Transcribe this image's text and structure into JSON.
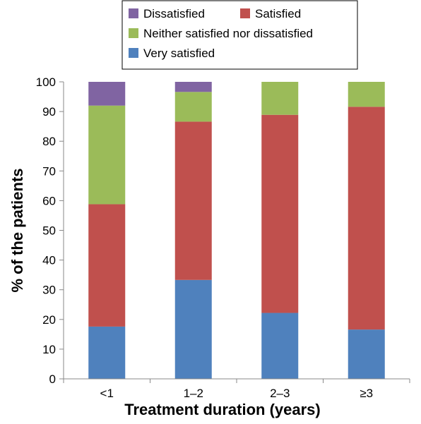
{
  "chart_data": {
    "type": "bar",
    "stacked": true,
    "categories": [
      "<1",
      "1–2",
      "2–3",
      "≥3"
    ],
    "series": [
      {
        "name": "Very satisfied",
        "color": "#4f81bd",
        "values": [
          17.6,
          33.3,
          22.2,
          16.6
        ]
      },
      {
        "name": "Satisfied",
        "color": "#c0504d",
        "values": [
          41.2,
          53.3,
          66.7,
          75.0
        ]
      },
      {
        "name": "Neither satisfied nor dissatisfied",
        "color": "#9bbb59",
        "values": [
          33.2,
          10.0,
          11.1,
          8.4
        ]
      },
      {
        "name": "Dissatisfied",
        "color": "#8064a2",
        "values": [
          8.0,
          3.4,
          0,
          0
        ]
      }
    ],
    "legend_order": [
      "Dissatisfied",
      "Satisfied",
      "Neither satisfied nor dissatisfied",
      "Very satisfied"
    ],
    "legend_position": "top",
    "xlabel": "Treatment duration (years)",
    "ylabel": "% of the patients",
    "ylim": [
      0,
      100
    ],
    "yticks": [
      0,
      10,
      20,
      30,
      40,
      50,
      60,
      70,
      80,
      90,
      100
    ],
    "grid": false
  }
}
